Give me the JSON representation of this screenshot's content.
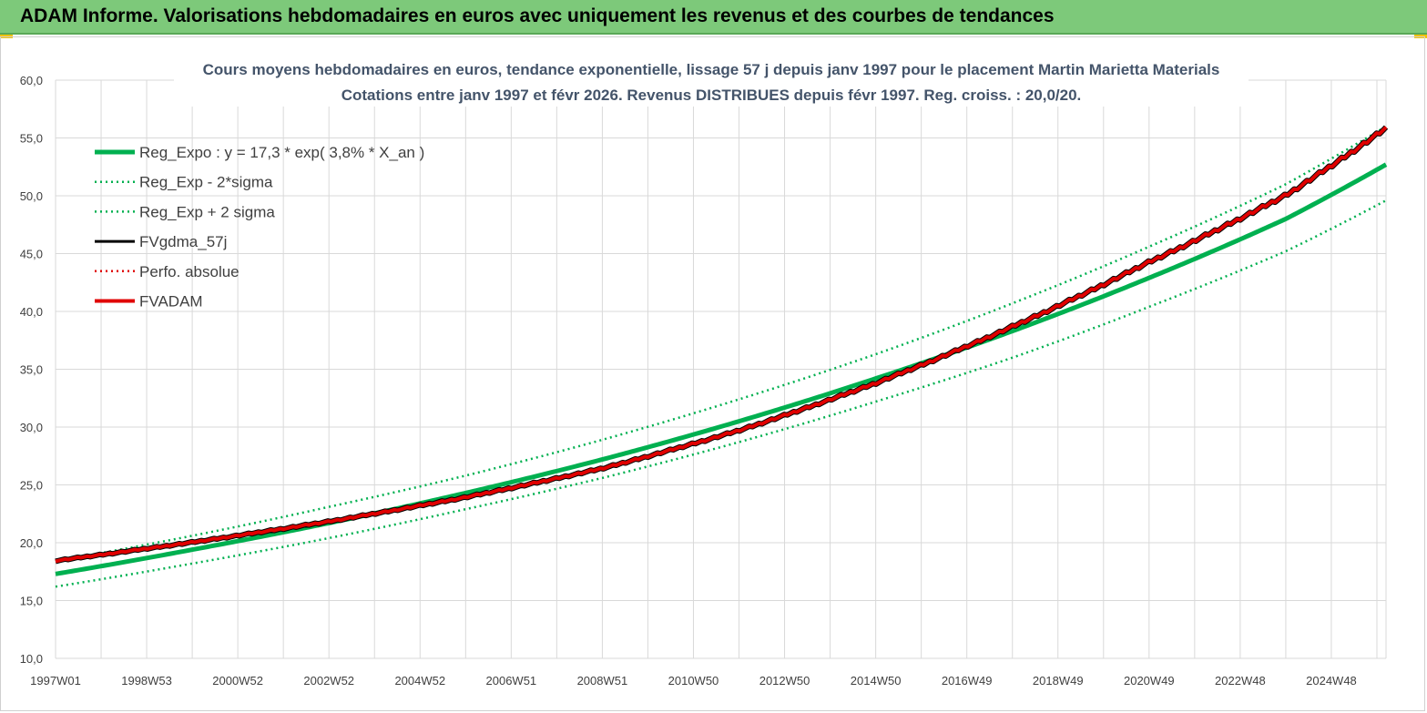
{
  "banner": {
    "title": "ADAM Informe. Valorisations hebdomadaires en euros avec uniquement les revenus et des courbes de tendances"
  },
  "chart_data": {
    "type": "line",
    "title": "Cours moyens hebdomadaires en euros, tendance exponentielle, lissage 57 j depuis janv 1997  pour le placement Martin Marietta Materials",
    "subtitle": "Cotations entre janv 1997 et févr 2026. Revenus DISTRIBUES depuis févr 1997. Reg. croiss. : 20,0/20.",
    "xlabel": "",
    "ylabel": "",
    "ylim": [
      10,
      60
    ],
    "yticks": [
      "10,0",
      "15,0",
      "20,0",
      "25,0",
      "30,0",
      "35,0",
      "40,0",
      "45,0",
      "50,0",
      "55,0",
      "60,0"
    ],
    "xlim": [
      1997.0,
      2026.2
    ],
    "xtick_labels": [
      "1997W01",
      "1998W53",
      "2000W52",
      "2002W52",
      "2004W52",
      "2006W51",
      "2008W51",
      "2010W50",
      "2012W50",
      "2014W50",
      "2016W49",
      "2018W49",
      "2020W49",
      "2022W48",
      "2024W48"
    ],
    "grid": true,
    "legend_position": "top-left",
    "series": [
      {
        "name": "Reg_Expo : y = 17,3 * exp( 3,8% *  X_an )",
        "color": "#00b050",
        "style": "solid-thick",
        "x": [
          1997,
          2000,
          2003,
          2006,
          2009,
          2012,
          2015,
          2018,
          2021,
          2024,
          2026.2
        ],
        "values": [
          17.3,
          19.4,
          21.7,
          24.3,
          27.2,
          30.5,
          34.2,
          38.3,
          42.9,
          48.0,
          52.7
        ]
      },
      {
        "name": "Reg_Exp - 2*sigma",
        "color": "#00b050",
        "style": "dotted",
        "x": [
          1997,
          2000,
          2003,
          2006,
          2009,
          2012,
          2015,
          2018,
          2021,
          2024,
          2026.2
        ],
        "values": [
          16.2,
          18.2,
          20.4,
          22.9,
          25.6,
          28.7,
          32.2,
          36.0,
          40.4,
          45.2,
          49.6
        ]
      },
      {
        "name": "Reg_Exp + 2 sigma",
        "color": "#00b050",
        "style": "dotted",
        "x": [
          1997,
          2000,
          2003,
          2006,
          2009,
          2012,
          2015,
          2018,
          2021,
          2024,
          2026.2
        ],
        "values": [
          18.4,
          20.6,
          23.1,
          25.8,
          28.9,
          32.4,
          36.3,
          40.7,
          45.6,
          51.0,
          56.0
        ]
      },
      {
        "name": "FVgdma_57j",
        "color": "#000000",
        "style": "solid",
        "x": [
          1997,
          2000,
          2003,
          2006,
          2009,
          2012,
          2015,
          2018,
          2021,
          2024,
          2026.2
        ],
        "values": [
          18.5,
          20.1,
          21.9,
          24.0,
          26.5,
          29.8,
          33.9,
          38.8,
          44.4,
          50.2,
          56.0
        ]
      },
      {
        "name": "Perfo. absolue",
        "color": "#e00000",
        "style": "dotted",
        "x": [
          1997,
          2000,
          2003,
          2006,
          2009,
          2012,
          2015,
          2018,
          2021,
          2024,
          2026.2
        ],
        "values": [
          18.5,
          20.1,
          21.9,
          24.0,
          26.5,
          29.8,
          33.9,
          38.8,
          44.4,
          50.2,
          56.0
        ]
      },
      {
        "name": "FVADAM",
        "color": "#e00000",
        "style": "solid-thick",
        "x": [
          1997,
          2000,
          2003,
          2006,
          2009,
          2012,
          2015,
          2018,
          2021,
          2024,
          2026.2
        ],
        "values": [
          18.5,
          20.1,
          21.9,
          24.0,
          26.5,
          29.8,
          33.9,
          38.8,
          44.4,
          50.2,
          56.0
        ]
      }
    ]
  }
}
